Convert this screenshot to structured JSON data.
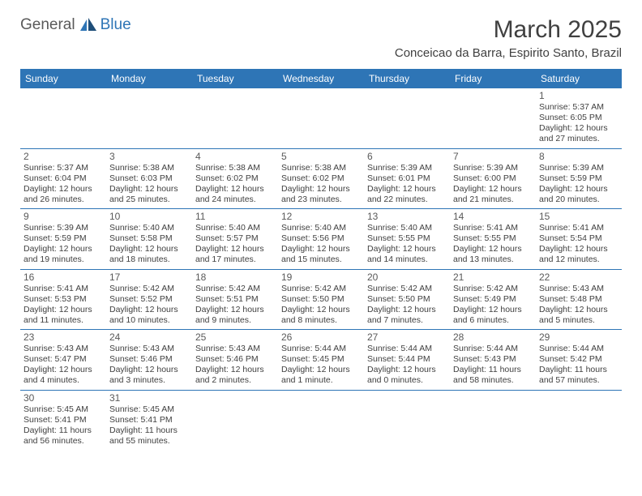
{
  "logo": {
    "general": "General",
    "blue": "Blue"
  },
  "title": "March 2025",
  "location": "Conceicao da Barra, Espirito Santo, Brazil",
  "day_headers": [
    "Sunday",
    "Monday",
    "Tuesday",
    "Wednesday",
    "Thursday",
    "Friday",
    "Saturday"
  ],
  "colors": {
    "header_bg": "#2e75b6",
    "header_text": "#ffffff",
    "title_text": "#404040",
    "day_num": "#595959",
    "body_text": "#404040",
    "logo_gray": "#5a5a5a",
    "logo_blue": "#2e75b6",
    "row_border": "#2e75b6"
  },
  "fonts": {
    "title_size": 30,
    "location_size": 15,
    "header_size": 12,
    "daynum_size": 12,
    "body_size": 10.5
  },
  "weeks": [
    [
      null,
      null,
      null,
      null,
      null,
      null,
      {
        "n": "1",
        "sr": "Sunrise: 5:37 AM",
        "ss": "Sunset: 6:05 PM",
        "d1": "Daylight: 12 hours",
        "d2": "and 27 minutes."
      }
    ],
    [
      {
        "n": "2",
        "sr": "Sunrise: 5:37 AM",
        "ss": "Sunset: 6:04 PM",
        "d1": "Daylight: 12 hours",
        "d2": "and 26 minutes."
      },
      {
        "n": "3",
        "sr": "Sunrise: 5:38 AM",
        "ss": "Sunset: 6:03 PM",
        "d1": "Daylight: 12 hours",
        "d2": "and 25 minutes."
      },
      {
        "n": "4",
        "sr": "Sunrise: 5:38 AM",
        "ss": "Sunset: 6:02 PM",
        "d1": "Daylight: 12 hours",
        "d2": "and 24 minutes."
      },
      {
        "n": "5",
        "sr": "Sunrise: 5:38 AM",
        "ss": "Sunset: 6:02 PM",
        "d1": "Daylight: 12 hours",
        "d2": "and 23 minutes."
      },
      {
        "n": "6",
        "sr": "Sunrise: 5:39 AM",
        "ss": "Sunset: 6:01 PM",
        "d1": "Daylight: 12 hours",
        "d2": "and 22 minutes."
      },
      {
        "n": "7",
        "sr": "Sunrise: 5:39 AM",
        "ss": "Sunset: 6:00 PM",
        "d1": "Daylight: 12 hours",
        "d2": "and 21 minutes."
      },
      {
        "n": "8",
        "sr": "Sunrise: 5:39 AM",
        "ss": "Sunset: 5:59 PM",
        "d1": "Daylight: 12 hours",
        "d2": "and 20 minutes."
      }
    ],
    [
      {
        "n": "9",
        "sr": "Sunrise: 5:39 AM",
        "ss": "Sunset: 5:59 PM",
        "d1": "Daylight: 12 hours",
        "d2": "and 19 minutes."
      },
      {
        "n": "10",
        "sr": "Sunrise: 5:40 AM",
        "ss": "Sunset: 5:58 PM",
        "d1": "Daylight: 12 hours",
        "d2": "and 18 minutes."
      },
      {
        "n": "11",
        "sr": "Sunrise: 5:40 AM",
        "ss": "Sunset: 5:57 PM",
        "d1": "Daylight: 12 hours",
        "d2": "and 17 minutes."
      },
      {
        "n": "12",
        "sr": "Sunrise: 5:40 AM",
        "ss": "Sunset: 5:56 PM",
        "d1": "Daylight: 12 hours",
        "d2": "and 15 minutes."
      },
      {
        "n": "13",
        "sr": "Sunrise: 5:40 AM",
        "ss": "Sunset: 5:55 PM",
        "d1": "Daylight: 12 hours",
        "d2": "and 14 minutes."
      },
      {
        "n": "14",
        "sr": "Sunrise: 5:41 AM",
        "ss": "Sunset: 5:55 PM",
        "d1": "Daylight: 12 hours",
        "d2": "and 13 minutes."
      },
      {
        "n": "15",
        "sr": "Sunrise: 5:41 AM",
        "ss": "Sunset: 5:54 PM",
        "d1": "Daylight: 12 hours",
        "d2": "and 12 minutes."
      }
    ],
    [
      {
        "n": "16",
        "sr": "Sunrise: 5:41 AM",
        "ss": "Sunset: 5:53 PM",
        "d1": "Daylight: 12 hours",
        "d2": "and 11 minutes."
      },
      {
        "n": "17",
        "sr": "Sunrise: 5:42 AM",
        "ss": "Sunset: 5:52 PM",
        "d1": "Daylight: 12 hours",
        "d2": "and 10 minutes."
      },
      {
        "n": "18",
        "sr": "Sunrise: 5:42 AM",
        "ss": "Sunset: 5:51 PM",
        "d1": "Daylight: 12 hours",
        "d2": "and 9 minutes."
      },
      {
        "n": "19",
        "sr": "Sunrise: 5:42 AM",
        "ss": "Sunset: 5:50 PM",
        "d1": "Daylight: 12 hours",
        "d2": "and 8 minutes."
      },
      {
        "n": "20",
        "sr": "Sunrise: 5:42 AM",
        "ss": "Sunset: 5:50 PM",
        "d1": "Daylight: 12 hours",
        "d2": "and 7 minutes."
      },
      {
        "n": "21",
        "sr": "Sunrise: 5:42 AM",
        "ss": "Sunset: 5:49 PM",
        "d1": "Daylight: 12 hours",
        "d2": "and 6 minutes."
      },
      {
        "n": "22",
        "sr": "Sunrise: 5:43 AM",
        "ss": "Sunset: 5:48 PM",
        "d1": "Daylight: 12 hours",
        "d2": "and 5 minutes."
      }
    ],
    [
      {
        "n": "23",
        "sr": "Sunrise: 5:43 AM",
        "ss": "Sunset: 5:47 PM",
        "d1": "Daylight: 12 hours",
        "d2": "and 4 minutes."
      },
      {
        "n": "24",
        "sr": "Sunrise: 5:43 AM",
        "ss": "Sunset: 5:46 PM",
        "d1": "Daylight: 12 hours",
        "d2": "and 3 minutes."
      },
      {
        "n": "25",
        "sr": "Sunrise: 5:43 AM",
        "ss": "Sunset: 5:46 PM",
        "d1": "Daylight: 12 hours",
        "d2": "and 2 minutes."
      },
      {
        "n": "26",
        "sr": "Sunrise: 5:44 AM",
        "ss": "Sunset: 5:45 PM",
        "d1": "Daylight: 12 hours",
        "d2": "and 1 minute."
      },
      {
        "n": "27",
        "sr": "Sunrise: 5:44 AM",
        "ss": "Sunset: 5:44 PM",
        "d1": "Daylight: 12 hours",
        "d2": "and 0 minutes."
      },
      {
        "n": "28",
        "sr": "Sunrise: 5:44 AM",
        "ss": "Sunset: 5:43 PM",
        "d1": "Daylight: 11 hours",
        "d2": "and 58 minutes."
      },
      {
        "n": "29",
        "sr": "Sunrise: 5:44 AM",
        "ss": "Sunset: 5:42 PM",
        "d1": "Daylight: 11 hours",
        "d2": "and 57 minutes."
      }
    ],
    [
      {
        "n": "30",
        "sr": "Sunrise: 5:45 AM",
        "ss": "Sunset: 5:41 PM",
        "d1": "Daylight: 11 hours",
        "d2": "and 56 minutes."
      },
      {
        "n": "31",
        "sr": "Sunrise: 5:45 AM",
        "ss": "Sunset: 5:41 PM",
        "d1": "Daylight: 11 hours",
        "d2": "and 55 minutes."
      },
      null,
      null,
      null,
      null,
      null
    ]
  ]
}
